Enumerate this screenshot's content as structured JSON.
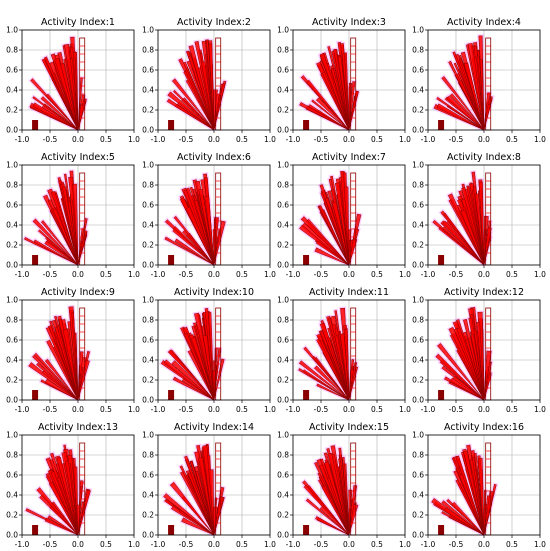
{
  "figure": {
    "background": "#ffffff",
    "grid_color": "#b0b0b0",
    "fan_color": "#ff0000",
    "fan_edge_color": "#8b0000",
    "halo_color": "#ff33ff"
  },
  "chart_data": [
    {
      "type": "line",
      "title": "Activity Index:1",
      "xlim": [
        -1.0,
        1.0
      ],
      "ylim": [
        0.0,
        1.0
      ],
      "x_ticks": [
        "-1.0",
        "-0.5",
        "0.0",
        "0.5",
        "1.0"
      ],
      "y_ticks": [
        "0.0",
        "0.2",
        "0.4",
        "0.6",
        "0.8",
        "1.0"
      ],
      "grid": true
    },
    {
      "type": "line",
      "title": "Activity Index:2",
      "xlim": [
        -1.0,
        1.0
      ],
      "ylim": [
        0.0,
        1.0
      ],
      "x_ticks": [
        "-1.0",
        "-0.5",
        "0.0",
        "0.5",
        "1.0"
      ],
      "y_ticks": [
        "0.0",
        "0.2",
        "0.4",
        "0.6",
        "0.8",
        "1.0"
      ],
      "grid": true
    },
    {
      "type": "line",
      "title": "Activity Index:3",
      "xlim": [
        -1.0,
        1.0
      ],
      "ylim": [
        0.0,
        1.0
      ],
      "x_ticks": [
        "-1.0",
        "-0.5",
        "0.0",
        "0.5",
        "1.0"
      ],
      "y_ticks": [
        "0.0",
        "0.2",
        "0.4",
        "0.6",
        "0.8",
        "1.0"
      ],
      "grid": true
    },
    {
      "type": "line",
      "title": "Activity Index:4",
      "xlim": [
        -1.0,
        1.0
      ],
      "ylim": [
        0.0,
        1.0
      ],
      "x_ticks": [
        "-1.0",
        "-0.5",
        "0.0",
        "0.5",
        "1.0"
      ],
      "y_ticks": [
        "0.0",
        "0.2",
        "0.4",
        "0.6",
        "0.8",
        "1.0"
      ],
      "grid": true
    },
    {
      "type": "line",
      "title": "Activity Index:5",
      "xlim": [
        -1.0,
        1.0
      ],
      "ylim": [
        0.0,
        1.0
      ],
      "x_ticks": [
        "-1.0",
        "-0.5",
        "0.0",
        "0.5",
        "1.0"
      ],
      "y_ticks": [
        "0.0",
        "0.2",
        "0.4",
        "0.6",
        "0.8",
        "1.0"
      ],
      "grid": true
    },
    {
      "type": "line",
      "title": "Activity Index:6",
      "xlim": [
        -1.0,
        1.0
      ],
      "ylim": [
        0.0,
        1.0
      ],
      "x_ticks": [
        "-1.0",
        "-0.5",
        "0.0",
        "0.5",
        "1.0"
      ],
      "y_ticks": [
        "0.0",
        "0.2",
        "0.4",
        "0.6",
        "0.8",
        "1.0"
      ],
      "grid": true
    },
    {
      "type": "line",
      "title": "Activity Index:7",
      "xlim": [
        -1.0,
        1.0
      ],
      "ylim": [
        0.0,
        1.0
      ],
      "x_ticks": [
        "-1.0",
        "-0.5",
        "0.0",
        "0.5",
        "1.0"
      ],
      "y_ticks": [
        "0.0",
        "0.2",
        "0.4",
        "0.6",
        "0.8",
        "1.0"
      ],
      "grid": true
    },
    {
      "type": "line",
      "title": "Activity Index:8",
      "xlim": [
        -1.0,
        1.0
      ],
      "ylim": [
        0.0,
        1.0
      ],
      "x_ticks": [
        "-1.0",
        "-0.5",
        "0.0",
        "0.5",
        "1.0"
      ],
      "y_ticks": [
        "0.0",
        "0.2",
        "0.4",
        "0.6",
        "0.8",
        "1.0"
      ],
      "grid": true
    },
    {
      "type": "line",
      "title": "Activity Index:9",
      "xlim": [
        -1.0,
        1.0
      ],
      "ylim": [
        0.0,
        1.0
      ],
      "x_ticks": [
        "-1.0",
        "-0.5",
        "0.0",
        "0.5",
        "1.0"
      ],
      "y_ticks": [
        "0.0",
        "0.2",
        "0.4",
        "0.6",
        "0.8",
        "1.0"
      ],
      "grid": true
    },
    {
      "type": "line",
      "title": "Activity Index:10",
      "xlim": [
        -1.0,
        1.0
      ],
      "ylim": [
        0.0,
        1.0
      ],
      "x_ticks": [
        "-1.0",
        "-0.5",
        "0.0",
        "0.5",
        "1.0"
      ],
      "y_ticks": [
        "0.0",
        "0.2",
        "0.4",
        "0.6",
        "0.8",
        "1.0"
      ],
      "grid": true
    },
    {
      "type": "line",
      "title": "Activity Index:11",
      "xlim": [
        -1.0,
        1.0
      ],
      "ylim": [
        0.0,
        1.0
      ],
      "x_ticks": [
        "-1.0",
        "-0.5",
        "0.0",
        "0.5",
        "1.0"
      ],
      "y_ticks": [
        "0.0",
        "0.2",
        "0.4",
        "0.6",
        "0.8",
        "1.0"
      ],
      "grid": true
    },
    {
      "type": "line",
      "title": "Activity Index:12",
      "xlim": [
        -1.0,
        1.0
      ],
      "ylim": [
        0.0,
        1.0
      ],
      "x_ticks": [
        "-1.0",
        "-0.5",
        "0.0",
        "0.5",
        "1.0"
      ],
      "y_ticks": [
        "0.0",
        "0.2",
        "0.4",
        "0.6",
        "0.8",
        "1.0"
      ],
      "grid": true
    },
    {
      "type": "line",
      "title": "Activity Index:13",
      "xlim": [
        -1.0,
        1.0
      ],
      "ylim": [
        0.0,
        1.0
      ],
      "x_ticks": [
        "-1.0",
        "-0.5",
        "0.0",
        "0.5",
        "1.0"
      ],
      "y_ticks": [
        "0.0",
        "0.2",
        "0.4",
        "0.6",
        "0.8",
        "1.0"
      ],
      "grid": true
    },
    {
      "type": "line",
      "title": "Activity Index:14",
      "xlim": [
        -1.0,
        1.0
      ],
      "ylim": [
        0.0,
        1.0
      ],
      "x_ticks": [
        "-1.0",
        "-0.5",
        "0.0",
        "0.5",
        "1.0"
      ],
      "y_ticks": [
        "0.0",
        "0.2",
        "0.4",
        "0.6",
        "0.8",
        "1.0"
      ],
      "grid": true
    },
    {
      "type": "line",
      "title": "Activity Index:15",
      "xlim": [
        -1.0,
        1.0
      ],
      "ylim": [
        0.0,
        1.0
      ],
      "x_ticks": [
        "-1.0",
        "-0.5",
        "0.0",
        "0.5",
        "1.0"
      ],
      "y_ticks": [
        "0.0",
        "0.2",
        "0.4",
        "0.6",
        "0.8",
        "1.0"
      ],
      "grid": true
    },
    {
      "type": "line",
      "title": "Activity Index:16",
      "xlim": [
        -1.0,
        1.0
      ],
      "ylim": [
        0.0,
        1.0
      ],
      "x_ticks": [
        "-1.0",
        "-0.5",
        "0.0",
        "0.5",
        "1.0"
      ],
      "y_ticks": [
        "0.0",
        "0.2",
        "0.4",
        "0.6",
        "0.8",
        "1.0"
      ],
      "grid": true
    }
  ]
}
